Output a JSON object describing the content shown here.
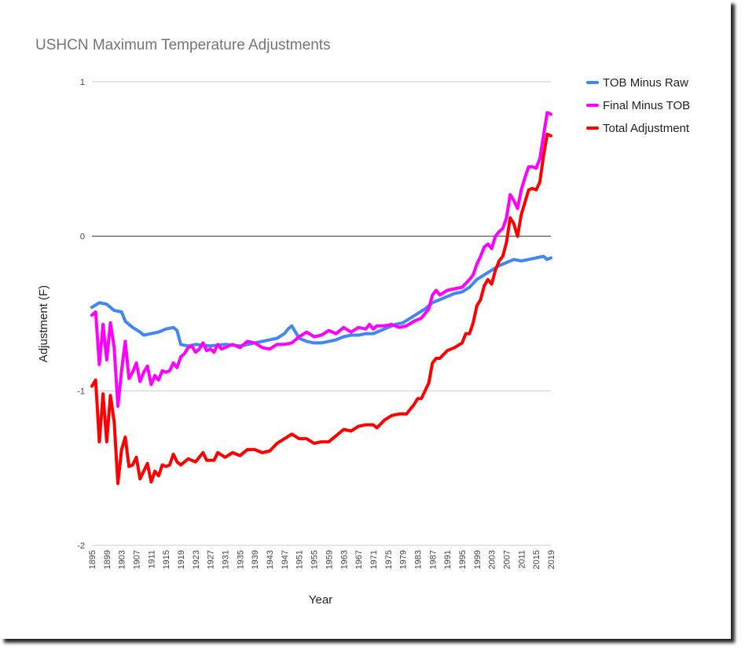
{
  "chart_data": {
    "type": "line",
    "title": "USHCN Maximum Temperature Adjustments",
    "xlabel": "Year",
    "ylabel": "Adjustment (F)",
    "ylim": [
      -2,
      1
    ],
    "yticks": [
      1,
      0,
      -1,
      -2
    ],
    "xlim": [
      1895,
      2019
    ],
    "xticks": [
      1895,
      1899,
      1903,
      1907,
      1911,
      1915,
      1919,
      1923,
      1927,
      1931,
      1935,
      1939,
      1943,
      1947,
      1951,
      1955,
      1959,
      1963,
      1967,
      1971,
      1975,
      1979,
      1983,
      1987,
      1991,
      1995,
      1999,
      2003,
      2007,
      2011,
      2015,
      2019
    ],
    "grid": true,
    "legend_position": "right",
    "series": [
      {
        "name": "TOB Minus Raw",
        "color": "#4285F4",
        "points": [
          [
            1895,
            -0.46
          ],
          [
            1897,
            -0.43
          ],
          [
            1899,
            -0.44
          ],
          [
            1901,
            -0.48
          ],
          [
            1903,
            -0.49
          ],
          [
            1904,
            -0.55
          ],
          [
            1906,
            -0.59
          ],
          [
            1908,
            -0.62
          ],
          [
            1909,
            -0.64
          ],
          [
            1911,
            -0.63
          ],
          [
            1913,
            -0.62
          ],
          [
            1915,
            -0.6
          ],
          [
            1917,
            -0.59
          ],
          [
            1918,
            -0.61
          ],
          [
            1919,
            -0.7
          ],
          [
            1921,
            -0.71
          ],
          [
            1923,
            -0.7
          ],
          [
            1927,
            -0.71
          ],
          [
            1931,
            -0.7
          ],
          [
            1935,
            -0.71
          ],
          [
            1939,
            -0.69
          ],
          [
            1943,
            -0.67
          ],
          [
            1945,
            -0.66
          ],
          [
            1947,
            -0.63
          ],
          [
            1948,
            -0.6
          ],
          [
            1949,
            -0.58
          ],
          [
            1950,
            -0.62
          ],
          [
            1951,
            -0.66
          ],
          [
            1953,
            -0.68
          ],
          [
            1955,
            -0.69
          ],
          [
            1957,
            -0.69
          ],
          [
            1959,
            -0.68
          ],
          [
            1961,
            -0.67
          ],
          [
            1963,
            -0.65
          ],
          [
            1965,
            -0.64
          ],
          [
            1967,
            -0.64
          ],
          [
            1969,
            -0.63
          ],
          [
            1971,
            -0.63
          ],
          [
            1973,
            -0.61
          ],
          [
            1975,
            -0.59
          ],
          [
            1977,
            -0.57
          ],
          [
            1979,
            -0.56
          ],
          [
            1981,
            -0.53
          ],
          [
            1983,
            -0.5
          ],
          [
            1985,
            -0.47
          ],
          [
            1987,
            -0.43
          ],
          [
            1989,
            -0.41
          ],
          [
            1991,
            -0.39
          ],
          [
            1993,
            -0.37
          ],
          [
            1995,
            -0.36
          ],
          [
            1997,
            -0.33
          ],
          [
            1999,
            -0.28
          ],
          [
            2001,
            -0.25
          ],
          [
            2003,
            -0.22
          ],
          [
            2005,
            -0.19
          ],
          [
            2007,
            -0.17
          ],
          [
            2009,
            -0.15
          ],
          [
            2011,
            -0.16
          ],
          [
            2013,
            -0.15
          ],
          [
            2015,
            -0.14
          ],
          [
            2017,
            -0.13
          ],
          [
            2018,
            -0.15
          ],
          [
            2019,
            -0.14
          ]
        ]
      },
      {
        "name": "Final Minus TOB",
        "color": "#FF00FF",
        "points": [
          [
            1895,
            -0.51
          ],
          [
            1896,
            -0.49
          ],
          [
            1897,
            -0.83
          ],
          [
            1898,
            -0.57
          ],
          [
            1899,
            -0.8
          ],
          [
            1900,
            -0.56
          ],
          [
            1901,
            -0.72
          ],
          [
            1902,
            -1.1
          ],
          [
            1903,
            -0.87
          ],
          [
            1904,
            -0.68
          ],
          [
            1905,
            -0.92
          ],
          [
            1906,
            -0.88
          ],
          [
            1907,
            -0.82
          ],
          [
            1908,
            -0.94
          ],
          [
            1909,
            -0.88
          ],
          [
            1910,
            -0.84
          ],
          [
            1911,
            -0.96
          ],
          [
            1912,
            -0.9
          ],
          [
            1913,
            -0.93
          ],
          [
            1914,
            -0.87
          ],
          [
            1915,
            -0.88
          ],
          [
            1916,
            -0.87
          ],
          [
            1917,
            -0.82
          ],
          [
            1918,
            -0.85
          ],
          [
            1919,
            -0.78
          ],
          [
            1920,
            -0.76
          ],
          [
            1921,
            -0.72
          ],
          [
            1922,
            -0.71
          ],
          [
            1923,
            -0.75
          ],
          [
            1924,
            -0.73
          ],
          [
            1925,
            -0.69
          ],
          [
            1926,
            -0.74
          ],
          [
            1927,
            -0.73
          ],
          [
            1928,
            -0.75
          ],
          [
            1929,
            -0.7
          ],
          [
            1930,
            -0.73
          ],
          [
            1931,
            -0.72
          ],
          [
            1933,
            -0.7
          ],
          [
            1935,
            -0.72
          ],
          [
            1937,
            -0.68
          ],
          [
            1939,
            -0.69
          ],
          [
            1941,
            -0.72
          ],
          [
            1943,
            -0.73
          ],
          [
            1945,
            -0.7
          ],
          [
            1947,
            -0.7
          ],
          [
            1949,
            -0.69
          ],
          [
            1951,
            -0.65
          ],
          [
            1953,
            -0.62
          ],
          [
            1955,
            -0.65
          ],
          [
            1957,
            -0.64
          ],
          [
            1959,
            -0.61
          ],
          [
            1961,
            -0.63
          ],
          [
            1963,
            -0.59
          ],
          [
            1965,
            -0.62
          ],
          [
            1967,
            -0.59
          ],
          [
            1969,
            -0.6
          ],
          [
            1970,
            -0.57
          ],
          [
            1971,
            -0.6
          ],
          [
            1972,
            -0.58
          ],
          [
            1974,
            -0.58
          ],
          [
            1976,
            -0.57
          ],
          [
            1978,
            -0.59
          ],
          [
            1980,
            -0.58
          ],
          [
            1982,
            -0.55
          ],
          [
            1984,
            -0.53
          ],
          [
            1986,
            -0.47
          ],
          [
            1987,
            -0.38
          ],
          [
            1988,
            -0.35
          ],
          [
            1989,
            -0.38
          ],
          [
            1991,
            -0.35
          ],
          [
            1993,
            -0.34
          ],
          [
            1995,
            -0.33
          ],
          [
            1997,
            -0.28
          ],
          [
            1998,
            -0.25
          ],
          [
            1999,
            -0.18
          ],
          [
            2000,
            -0.13
          ],
          [
            2001,
            -0.07
          ],
          [
            2002,
            -0.05
          ],
          [
            2003,
            -0.08
          ],
          [
            2004,
            0.0
          ],
          [
            2005,
            0.03
          ],
          [
            2006,
            0.05
          ],
          [
            2007,
            0.12
          ],
          [
            2008,
            0.27
          ],
          [
            2009,
            0.23
          ],
          [
            2010,
            0.18
          ],
          [
            2011,
            0.3
          ],
          [
            2012,
            0.38
          ],
          [
            2013,
            0.45
          ],
          [
            2014,
            0.45
          ],
          [
            2015,
            0.44
          ],
          [
            2016,
            0.5
          ],
          [
            2017,
            0.65
          ],
          [
            2018,
            0.8
          ],
          [
            2019,
            0.79
          ]
        ]
      },
      {
        "name": "Total Adjustment",
        "color": "#FF0000",
        "points": [
          [
            1895,
            -0.97
          ],
          [
            1896,
            -0.93
          ],
          [
            1897,
            -1.33
          ],
          [
            1898,
            -1.02
          ],
          [
            1899,
            -1.33
          ],
          [
            1900,
            -1.03
          ],
          [
            1901,
            -1.2
          ],
          [
            1902,
            -1.6
          ],
          [
            1903,
            -1.38
          ],
          [
            1904,
            -1.3
          ],
          [
            1905,
            -1.49
          ],
          [
            1906,
            -1.48
          ],
          [
            1907,
            -1.43
          ],
          [
            1908,
            -1.57
          ],
          [
            1909,
            -1.52
          ],
          [
            1910,
            -1.47
          ],
          [
            1911,
            -1.59
          ],
          [
            1912,
            -1.52
          ],
          [
            1913,
            -1.55
          ],
          [
            1914,
            -1.48
          ],
          [
            1915,
            -1.49
          ],
          [
            1916,
            -1.48
          ],
          [
            1917,
            -1.41
          ],
          [
            1918,
            -1.46
          ],
          [
            1919,
            -1.48
          ],
          [
            1921,
            -1.44
          ],
          [
            1923,
            -1.46
          ],
          [
            1925,
            -1.4
          ],
          [
            1926,
            -1.45
          ],
          [
            1928,
            -1.45
          ],
          [
            1929,
            -1.4
          ],
          [
            1931,
            -1.43
          ],
          [
            1933,
            -1.4
          ],
          [
            1935,
            -1.42
          ],
          [
            1937,
            -1.38
          ],
          [
            1939,
            -1.38
          ],
          [
            1941,
            -1.4
          ],
          [
            1943,
            -1.39
          ],
          [
            1945,
            -1.34
          ],
          [
            1947,
            -1.31
          ],
          [
            1949,
            -1.28
          ],
          [
            1951,
            -1.31
          ],
          [
            1953,
            -1.31
          ],
          [
            1955,
            -1.34
          ],
          [
            1957,
            -1.33
          ],
          [
            1959,
            -1.33
          ],
          [
            1961,
            -1.29
          ],
          [
            1963,
            -1.25
          ],
          [
            1965,
            -1.26
          ],
          [
            1967,
            -1.23
          ],
          [
            1969,
            -1.22
          ],
          [
            1971,
            -1.22
          ],
          [
            1972,
            -1.24
          ],
          [
            1974,
            -1.19
          ],
          [
            1976,
            -1.16
          ],
          [
            1978,
            -1.15
          ],
          [
            1980,
            -1.15
          ],
          [
            1982,
            -1.09
          ],
          [
            1983,
            -1.05
          ],
          [
            1984,
            -1.05
          ],
          [
            1985,
            -1.0
          ],
          [
            1986,
            -0.95
          ],
          [
            1987,
            -0.82
          ],
          [
            1988,
            -0.79
          ],
          [
            1989,
            -0.79
          ],
          [
            1991,
            -0.74
          ],
          [
            1993,
            -0.72
          ],
          [
            1995,
            -0.69
          ],
          [
            1996,
            -0.63
          ],
          [
            1997,
            -0.63
          ],
          [
            1998,
            -0.56
          ],
          [
            1999,
            -0.45
          ],
          [
            2000,
            -0.41
          ],
          [
            2001,
            -0.32
          ],
          [
            2002,
            -0.28
          ],
          [
            2003,
            -0.31
          ],
          [
            2004,
            -0.22
          ],
          [
            2005,
            -0.16
          ],
          [
            2006,
            -0.13
          ],
          [
            2007,
            -0.04
          ],
          [
            2008,
            0.12
          ],
          [
            2009,
            0.08
          ],
          [
            2010,
            0.0
          ],
          [
            2011,
            0.14
          ],
          [
            2012,
            0.22
          ],
          [
            2013,
            0.3
          ],
          [
            2014,
            0.31
          ],
          [
            2015,
            0.3
          ],
          [
            2016,
            0.35
          ],
          [
            2017,
            0.52
          ],
          [
            2018,
            0.66
          ],
          [
            2019,
            0.65
          ]
        ]
      }
    ]
  }
}
